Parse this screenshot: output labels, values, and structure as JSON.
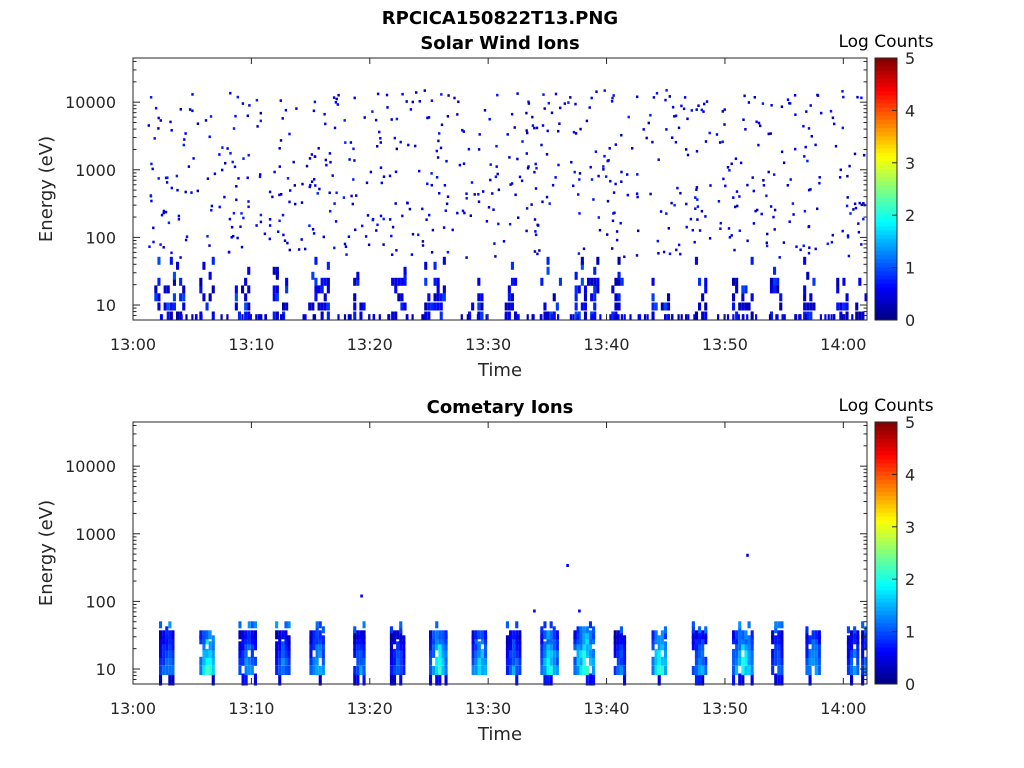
{
  "figure": {
    "title": "RPCICA150822T13.PNG"
  },
  "chart_data": [
    {
      "type": "heatmap",
      "title": "Solar Wind Ions",
      "xlabel": "Time",
      "ylabel": "Energy (eV)",
      "x_ticks": [
        "13:00",
        "13:10",
        "13:20",
        "13:30",
        "13:40",
        "13:50",
        "14:00"
      ],
      "y_ticks": [
        "10",
        "100",
        "1000",
        "10000"
      ],
      "xlim_minutes": [
        0,
        62
      ],
      "ylim_ev": [
        6,
        45000
      ],
      "y_scale": "log",
      "colorbar": {
        "title": "Log Counts",
        "ticks": [
          "0",
          "1",
          "2",
          "3",
          "4",
          "5"
        ],
        "range": [
          0,
          5
        ],
        "colormap": "jet"
      },
      "clusters": [
        {
          "start": 1.8,
          "end": 4.2,
          "max_log": 0.9
        },
        {
          "start": 5.6,
          "end": 6.8,
          "max_log": 0.8
        },
        {
          "start": 8.6,
          "end": 9.8,
          "max_log": 0.9
        },
        {
          "start": 11.8,
          "end": 12.9,
          "max_log": 0.8
        },
        {
          "start": 14.8,
          "end": 16.4,
          "max_log": 0.8
        },
        {
          "start": 18.6,
          "end": 19.6,
          "max_log": 0.8
        },
        {
          "start": 21.8,
          "end": 22.9,
          "max_log": 0.7
        },
        {
          "start": 24.6,
          "end": 26.4,
          "max_log": 0.8
        },
        {
          "start": 28.3,
          "end": 29.6,
          "max_log": 0.9
        },
        {
          "start": 31.4,
          "end": 32.4,
          "max_log": 0.8
        },
        {
          "start": 34.4,
          "end": 36.2,
          "max_log": 0.9
        },
        {
          "start": 37.3,
          "end": 39.2,
          "max_log": 0.9
        },
        {
          "start": 40.4,
          "end": 41.4,
          "max_log": 0.8
        },
        {
          "start": 43.8,
          "end": 45.2,
          "max_log": 0.9
        },
        {
          "start": 47.2,
          "end": 48.4,
          "max_log": 0.8
        },
        {
          "start": 50.6,
          "end": 52.4,
          "max_log": 0.9
        },
        {
          "start": 53.8,
          "end": 54.8,
          "max_log": 0.8
        },
        {
          "start": 56.6,
          "end": 57.9,
          "max_log": 0.8
        },
        {
          "start": 59.4,
          "end": 60.4,
          "max_log": 0.8
        },
        {
          "start": 61.0,
          "end": 61.9,
          "max_log": 0.8
        }
      ],
      "scatter": {
        "min_ev": 50,
        "max_ev": 15000,
        "count": 650,
        "max_log": 0.6
      }
    },
    {
      "type": "heatmap",
      "title": "Cometary Ions",
      "xlabel": "Time",
      "ylabel": "Energy (eV)",
      "x_ticks": [
        "13:00",
        "13:10",
        "13:20",
        "13:30",
        "13:40",
        "13:50",
        "14:00"
      ],
      "y_ticks": [
        "10",
        "100",
        "1000",
        "10000"
      ],
      "xlim_minutes": [
        0,
        62
      ],
      "ylim_ev": [
        6,
        45000
      ],
      "y_scale": "log",
      "colorbar": {
        "title": "Log Counts",
        "ticks": [
          "0",
          "1",
          "2",
          "3",
          "4",
          "5"
        ],
        "range": [
          0,
          5
        ],
        "colormap": "jet"
      },
      "clusters": [
        {
          "start": 2.2,
          "end": 3.5,
          "max_log": 1.3
        },
        {
          "start": 5.6,
          "end": 6.9,
          "max_log": 2.2
        },
        {
          "start": 8.9,
          "end": 10.3,
          "max_log": 1.4
        },
        {
          "start": 12.0,
          "end": 13.1,
          "max_log": 1.3
        },
        {
          "start": 14.9,
          "end": 16.2,
          "max_log": 1.6
        },
        {
          "start": 18.6,
          "end": 19.6,
          "max_log": 1.3
        },
        {
          "start": 21.7,
          "end": 22.9,
          "max_log": 1.1
        },
        {
          "start": 25.0,
          "end": 26.5,
          "max_log": 2.0
        },
        {
          "start": 28.6,
          "end": 29.8,
          "max_log": 1.9
        },
        {
          "start": 31.5,
          "end": 32.6,
          "max_log": 1.3
        },
        {
          "start": 34.4,
          "end": 35.8,
          "max_log": 2.0
        },
        {
          "start": 37.2,
          "end": 39.0,
          "max_log": 2.2
        },
        {
          "start": 40.6,
          "end": 41.5,
          "max_log": 1.2
        },
        {
          "start": 43.8,
          "end": 45.0,
          "max_log": 2.2
        },
        {
          "start": 47.2,
          "end": 48.4,
          "max_log": 1.5
        },
        {
          "start": 50.6,
          "end": 52.3,
          "max_log": 2.0
        },
        {
          "start": 53.9,
          "end": 54.8,
          "max_log": 1.3
        },
        {
          "start": 56.8,
          "end": 58.0,
          "max_log": 1.7
        },
        {
          "start": 60.3,
          "end": 61.3,
          "max_log": 1.3
        },
        {
          "start": 61.5,
          "end": 61.9,
          "max_log": 1.4
        }
      ],
      "isolated_points": [
        {
          "minute": 19.2,
          "ev": 120,
          "log": 0.6
        },
        {
          "minute": 33.8,
          "ev": 72,
          "log": 0.6
        },
        {
          "minute": 36.6,
          "ev": 340,
          "log": 0.6
        },
        {
          "minute": 37.6,
          "ev": 72,
          "log": 0.6
        },
        {
          "minute": 51.8,
          "ev": 480,
          "log": 0.6
        }
      ]
    }
  ]
}
